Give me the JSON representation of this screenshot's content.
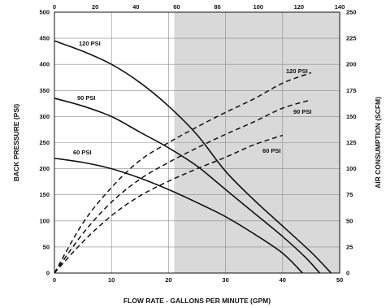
{
  "chart_data": {
    "type": "line",
    "title": "",
    "xlabel": "FLOW RATE - GALLONS PER MINUTE (GPM)",
    "ylabel": "BACK PRESSURE (PSI)",
    "y2label": "AIR CONSUMPTION (SCFM)",
    "xlim": [
      0,
      50
    ],
    "ylim": [
      0,
      500
    ],
    "x2lim": [
      0,
      140
    ],
    "y2lim": [
      0,
      250
    ],
    "x_ticks": [
      "0",
      "10",
      "20",
      "30",
      "40",
      "50"
    ],
    "y_ticks": [
      "0",
      "50",
      "100",
      "150",
      "200",
      "250",
      "300",
      "350",
      "400",
      "450",
      "500"
    ],
    "x2_ticks": [
      "0",
      "20",
      "40",
      "60",
      "80",
      "100",
      "120",
      "140"
    ],
    "y2_ticks": [
      "0",
      "25",
      "50",
      "75",
      "100",
      "125",
      "150",
      "175",
      "200",
      "225",
      "250"
    ],
    "grid": true,
    "shaded_region_x": [
      21,
      50
    ],
    "shade_color": "#d9d9d9",
    "pressure_series": [
      {
        "name": "120 PSI",
        "x": [
          0,
          5,
          10,
          15,
          20,
          25,
          30,
          35,
          40,
          45,
          48.5
        ],
        "values": [
          445,
          425,
          400,
          365,
          320,
          265,
          195,
          140,
          90,
          40,
          0
        ]
      },
      {
        "name": "90 PSI",
        "x": [
          0,
          5,
          10,
          15,
          20,
          25,
          30,
          35,
          40,
          44,
          46.5
        ],
        "values": [
          335,
          320,
          300,
          270,
          240,
          205,
          160,
          115,
          70,
          30,
          0
        ]
      },
      {
        "name": "60 PSI",
        "x": [
          0,
          5,
          10,
          15,
          20,
          25,
          30,
          35,
          40,
          43.5
        ],
        "values": [
          220,
          212,
          200,
          182,
          160,
          135,
          108,
          75,
          38,
          0
        ]
      }
    ],
    "air_series": [
      {
        "name": "120 PSI",
        "x": [
          0,
          5,
          10,
          15,
          20,
          25,
          30,
          35,
          40,
          45
        ],
        "values": [
          0,
          48,
          82,
          108,
          125,
          140,
          154,
          167,
          182,
          192
        ]
      },
      {
        "name": "90 PSI",
        "x": [
          0,
          5,
          10,
          15,
          20,
          25,
          30,
          35,
          40,
          45
        ],
        "values": [
          0,
          38,
          68,
          90,
          106,
          120,
          133,
          145,
          158,
          166
        ]
      },
      {
        "name": "60 PSI",
        "x": [
          0,
          5,
          10,
          15,
          20,
          25,
          30,
          35,
          40
        ],
        "values": [
          0,
          30,
          55,
          74,
          88,
          100,
          111,
          123,
          132
        ]
      }
    ]
  }
}
